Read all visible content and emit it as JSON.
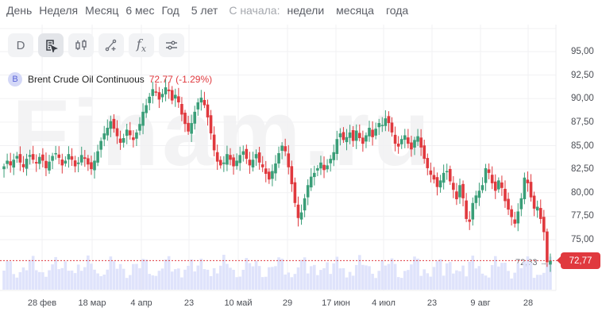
{
  "periods": {
    "items": [
      "День",
      "Неделя",
      "Месяц",
      "6 мес",
      "Год",
      "5 лет"
    ],
    "since_label": "С начала:",
    "since_items": [
      "недели",
      "месяца",
      "года"
    ]
  },
  "toolbar": {
    "buttons": [
      {
        "name": "interval-button",
        "label": "D"
      },
      {
        "name": "cursor-tool-button",
        "icon": "cursor-doc-icon"
      },
      {
        "name": "chart-type-button",
        "icon": "candlestick-icon"
      },
      {
        "name": "drawing-tool-button",
        "icon": "line-draw-icon"
      },
      {
        "name": "indicators-button",
        "icon": "function-icon",
        "label": "fx"
      },
      {
        "name": "settings-button",
        "icon": "sliders-icon"
      }
    ]
  },
  "legend": {
    "badge": "B",
    "name": "Brent Crude Oil Continuous",
    "value": "72.77 (-1.29%)"
  },
  "watermark": "Finam.ru",
  "price_badge": "72,77",
  "last_close_label": "72,63 →",
  "colors": {
    "up": "#3a9e78",
    "down": "#e0393e",
    "volume": "#dfe3fb",
    "badge": "#e0393e"
  },
  "chart_data": {
    "type": "candlestick",
    "title": "Brent Crude Oil Continuous",
    "last": 72.77,
    "change_pct": -1.29,
    "ylim": [
      71.5,
      96.5
    ],
    "yticks": [
      "95,00",
      "92,50",
      "90,00",
      "87,50",
      "85,00",
      "82,50",
      "80,00",
      "77,50",
      "75,00"
    ],
    "ytick_values": [
      95,
      92.5,
      90,
      87.5,
      85,
      82.5,
      80,
      77.5,
      75
    ],
    "xticks": [
      "28 фев",
      "18 мар",
      "4 апр",
      "23",
      "10 май",
      "29",
      "17 июн",
      "4 июл",
      "23",
      "9 авг",
      "28"
    ],
    "xtick_pos": [
      53,
      116,
      178,
      238,
      300,
      362,
      423,
      483,
      544,
      605,
      665
    ],
    "reference_line": 72.77,
    "candles_close": [
      82.8,
      83.4,
      82.9,
      83.5,
      83.9,
      83.2,
      82.7,
      83.6,
      84.0,
      83.5,
      83.1,
      83.8,
      83.4,
      82.6,
      83.3,
      83.9,
      84.2,
      83.7,
      82.9,
      83.4,
      84.1,
      83.5,
      82.8,
      83.2,
      84.0,
      83.6,
      83.0,
      82.5,
      83.4,
      84.4,
      85.5,
      86.3,
      86.9,
      87.6,
      86.8,
      86.0,
      85.3,
      85.8,
      86.7,
      86.1,
      85.6,
      86.4,
      87.3,
      88.6,
      89.3,
      90.2,
      91.0,
      90.7,
      89.9,
      90.5,
      91.2,
      90.8,
      89.8,
      90.4,
      89.6,
      88.3,
      87.3,
      86.5,
      87.4,
      88.6,
      89.6,
      90.1,
      89.3,
      88.0,
      86.3,
      84.5,
      83.3,
      82.9,
      83.2,
      84.1,
      83.5,
      82.8,
      83.4,
      84.0,
      84.4,
      83.6,
      82.9,
      83.5,
      84.1,
      83.2,
      82.7,
      82.0,
      81.4,
      82.3,
      83.1,
      84.2,
      85.0,
      84.4,
      82.7,
      80.9,
      78.9,
      77.3,
      77.9,
      79.4,
      80.8,
      81.7,
      82.1,
      82.6,
      83.2,
      82.4,
      82.9,
      83.6,
      84.3,
      85.7,
      86.3,
      85.6,
      85.9,
      86.4,
      85.5,
      86.6,
      85.8,
      85.2,
      86.1,
      86.9,
      85.9,
      86.8,
      87.4,
      87.2,
      87.9,
      87.4,
      86.4,
      85.2,
      84.9,
      85.7,
      86.1,
      85.2,
      84.6,
      85.6,
      86.0,
      84.8,
      83.6,
      82.6,
      81.9,
      81.4,
      80.6,
      81.3,
      82.1,
      82.3,
      81.2,
      80.3,
      79.3,
      80.8,
      79.4,
      77.2,
      76.9,
      78.9,
      79.7,
      80.2,
      80.8,
      82.6,
      82.1,
      81.0,
      80.2,
      81.3,
      80.5,
      79.1,
      78.2,
      77.4,
      76.7,
      78.0,
      79.4,
      81.6,
      81.0,
      79.5,
      78.3,
      78.5,
      77.2,
      75.8,
      72.6,
      72.77
    ]
  }
}
